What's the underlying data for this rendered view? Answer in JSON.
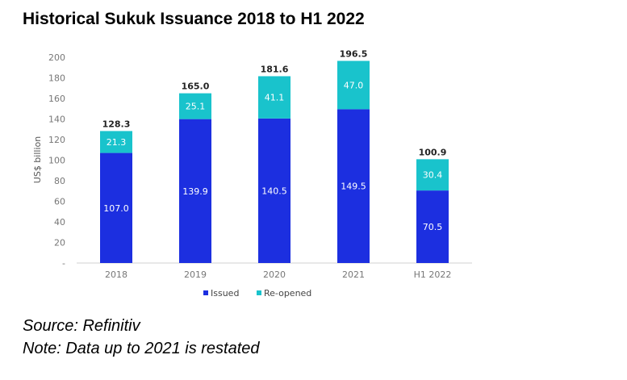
{
  "chart_data": {
    "type": "bar",
    "stacked": true,
    "title": "Historical Sukuk Issuance 2018 to H1 2022",
    "ylabel": "US$ billion",
    "xlabel": "",
    "categories": [
      "2018",
      "2019",
      "2020",
      "2021",
      "H1 2022"
    ],
    "series": [
      {
        "name": "Issued",
        "values": [
          107.0,
          139.9,
          140.5,
          149.5,
          70.5
        ],
        "color": "#1c2fe0"
      },
      {
        "name": "Re-opened",
        "values": [
          21.3,
          25.1,
          41.1,
          47.0,
          30.4
        ],
        "color": "#19c3cc"
      }
    ],
    "totals": [
      128.3,
      165.0,
      181.6,
      196.5,
      100.9
    ],
    "ylim": [
      0,
      200
    ],
    "yticks": [
      "-",
      "20",
      "40",
      "60",
      "80",
      "100",
      "120",
      "140",
      "160",
      "180",
      "200"
    ],
    "grid": false,
    "legend": "bottom"
  },
  "notes": {
    "source": "Source: Refinitiv",
    "note": "Note: Data up to 2021 is restated"
  }
}
